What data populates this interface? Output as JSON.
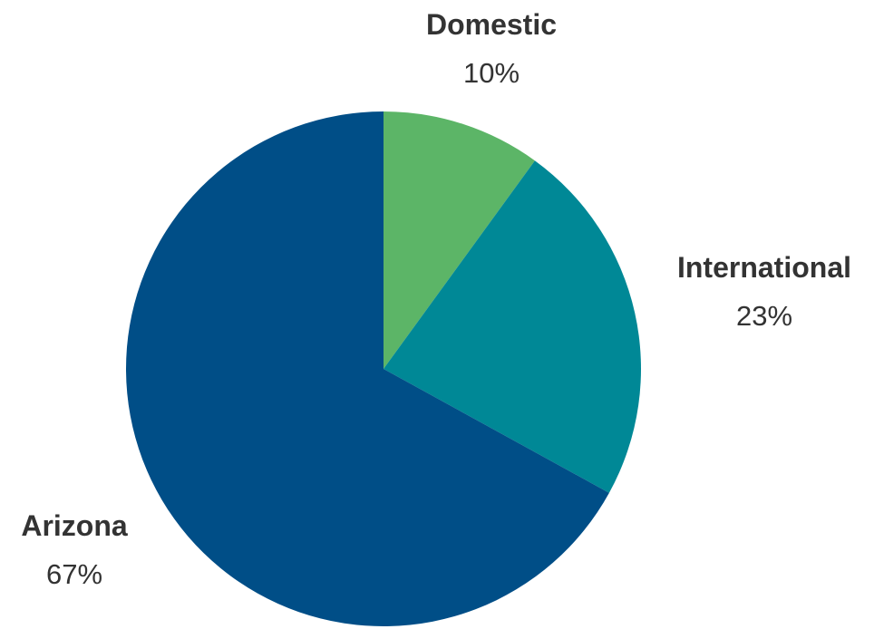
{
  "chart_data": {
    "type": "pie",
    "title": "",
    "categories": [
      "Domestic",
      "International",
      "Arizona"
    ],
    "values": [
      10,
      23,
      67
    ],
    "value_labels": [
      "10%",
      "23%",
      "67%"
    ],
    "colors": [
      "#5cb567",
      "#008896",
      "#004e87"
    ],
    "start_angle_deg": 0,
    "direction": "clockwise",
    "legend": "none",
    "label_placement": "outside"
  }
}
